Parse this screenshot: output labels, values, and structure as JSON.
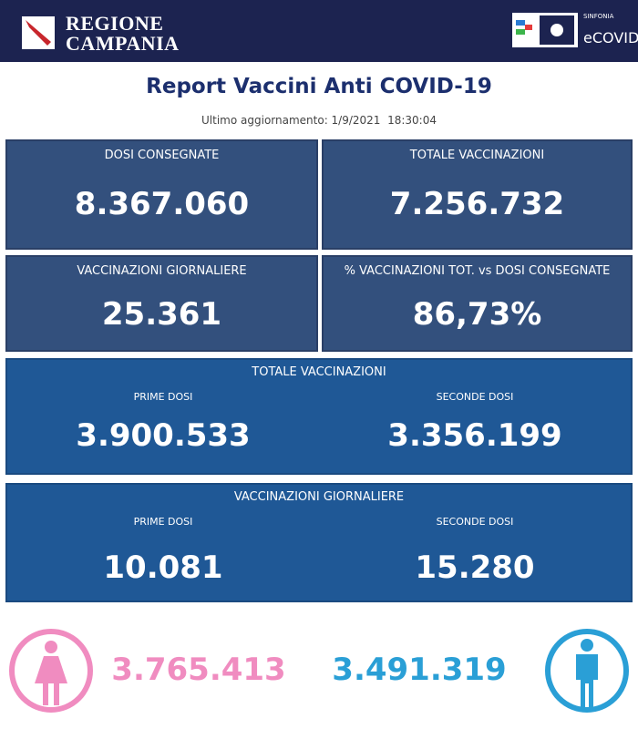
{
  "header": {
    "region": [
      "REGIONE",
      "CAMPANIA"
    ],
    "brand": "SINFONIA",
    "product": "eCOVID"
  },
  "title": "Report Vaccini Anti COVID-19",
  "updated": "Ultimo aggiornamento: 1/9/2021  18:30:04",
  "cards": [
    {
      "label": "DOSI  CONSEGNATE",
      "value": "8.367.060"
    },
    {
      "label": "TOTALE VACCINAZIONI",
      "value": "7.256.732"
    },
    {
      "label": "VACCINAZIONI GIORNALIERE",
      "value": "25.361"
    },
    {
      "label": "% VACCINAZIONI TOT. vs DOSI CONSEGNATE",
      "value": "86,73%"
    }
  ],
  "breakdowns": [
    {
      "title": "TOTALE VACCINAZIONI",
      "items": [
        {
          "label": "PRIME DOSI",
          "value": "3.900.533"
        },
        {
          "label": "SECONDE DOSI",
          "value": "3.356.199"
        }
      ]
    },
    {
      "title": "VACCINAZIONI GIORNALIERE",
      "items": [
        {
          "label": "PRIME DOSI",
          "value": "10.081"
        },
        {
          "label": "SECONDE DOSI",
          "value": "15.280"
        }
      ]
    }
  ],
  "gender": {
    "female": "3.765.413",
    "male": "3.491.319"
  }
}
